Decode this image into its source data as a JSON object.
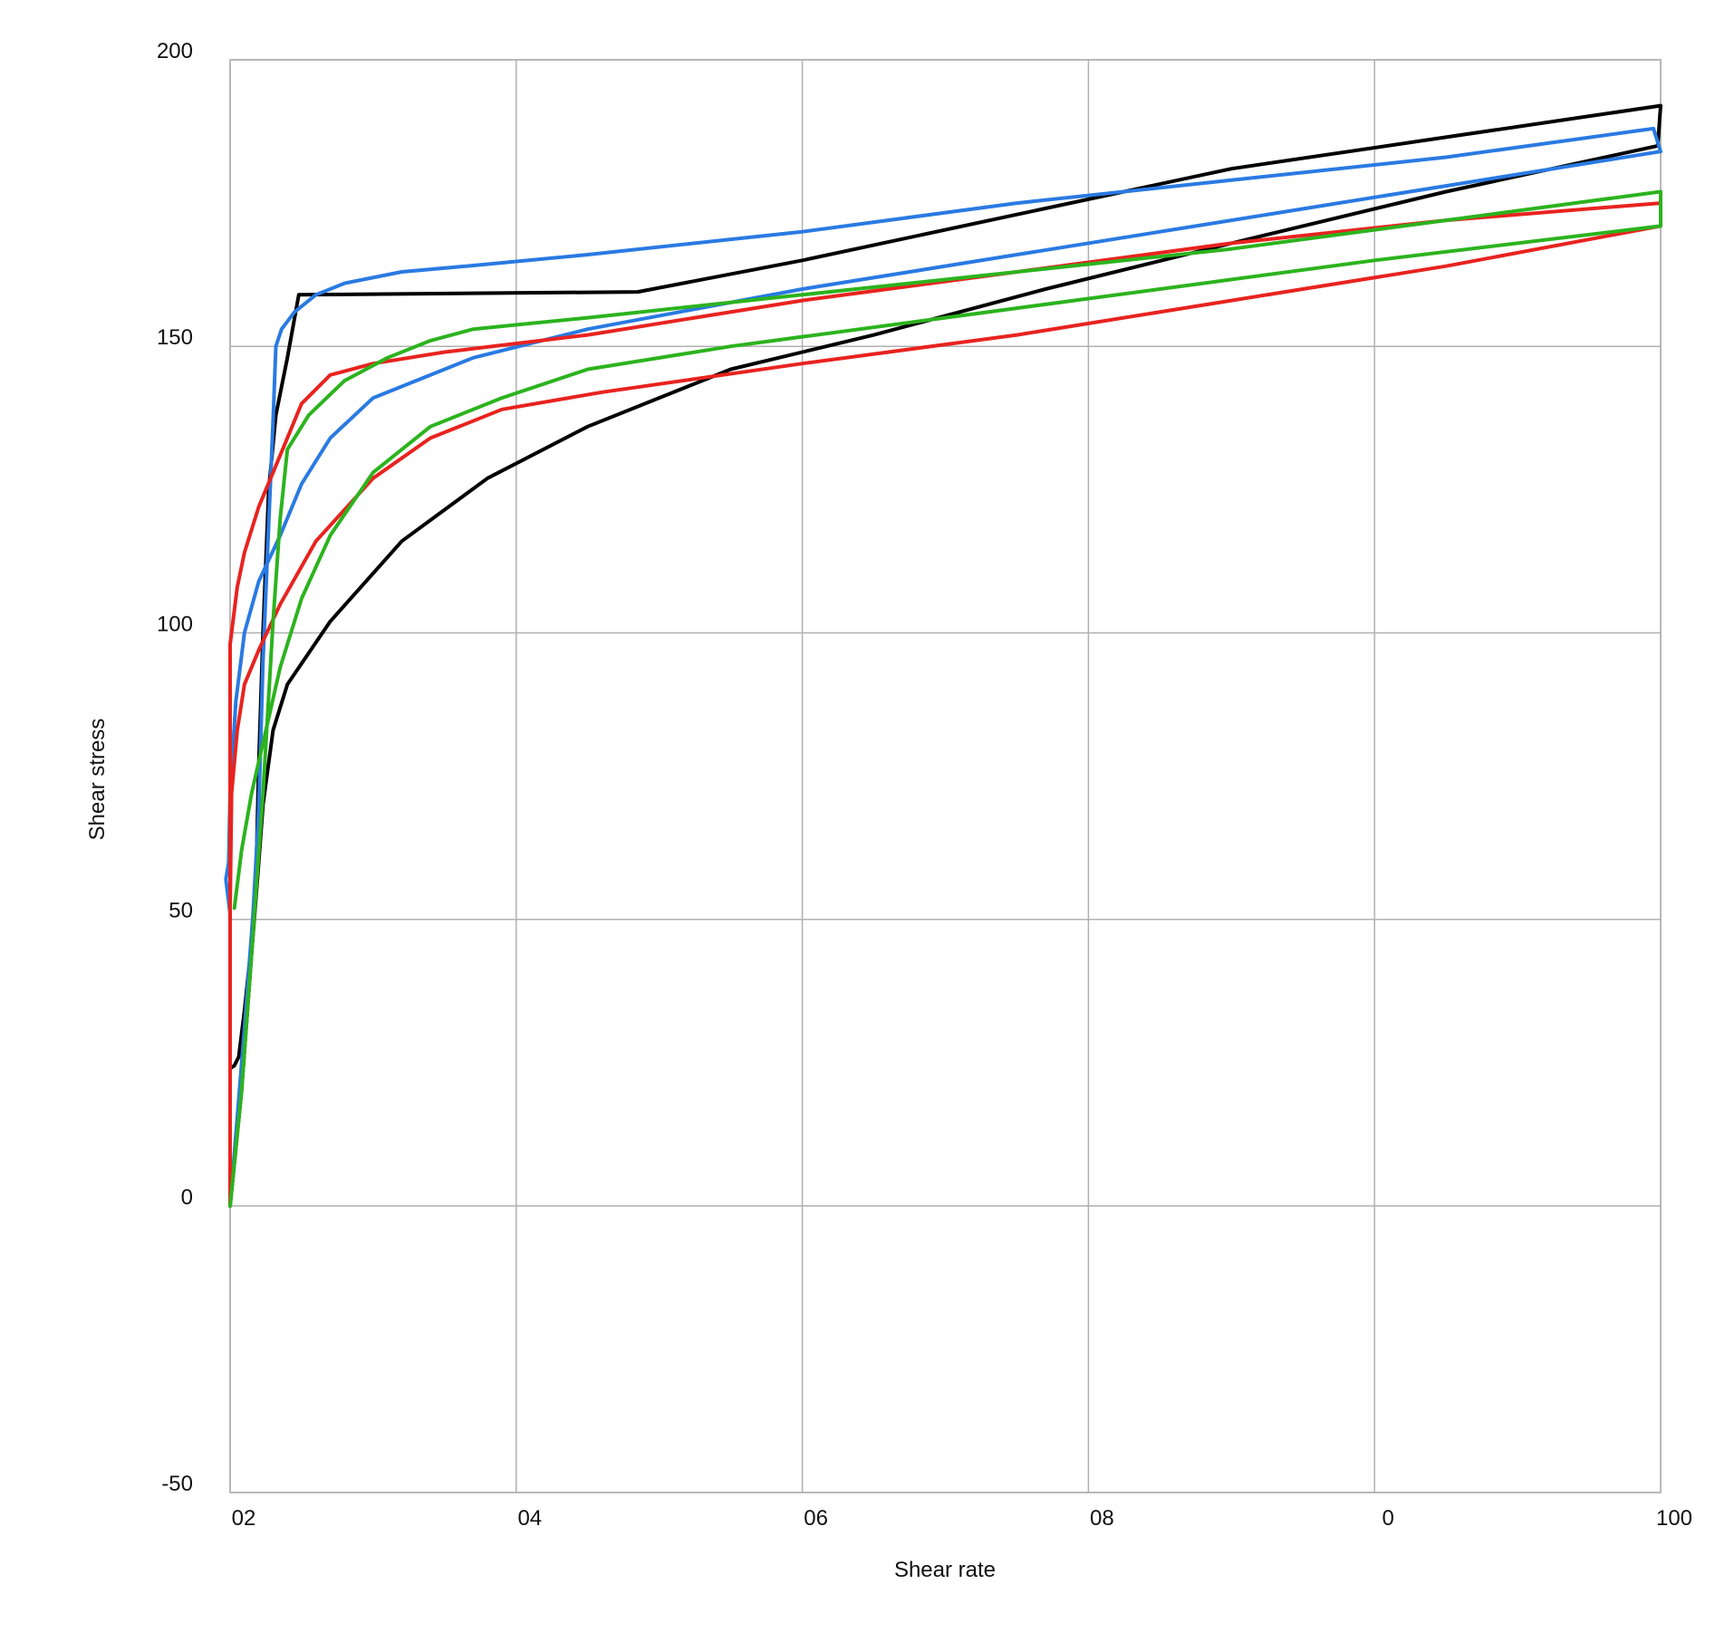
{
  "chart_data": {
    "type": "line",
    "title": "",
    "xlabel": "Shear rate",
    "ylabel": "Shear stress",
    "xlim": [
      0,
      100
    ],
    "ylim": [
      -50,
      200
    ],
    "grid": true,
    "x_tick_labels": [
      "02",
      "04",
      "06",
      "08",
      "0",
      "100"
    ],
    "y_tick_labels": [
      "200",
      "150",
      "100",
      "50",
      "0",
      "-50"
    ],
    "x_ticks": [
      0,
      20,
      40,
      60,
      80,
      100
    ],
    "y_ticks": [
      200,
      150,
      100,
      50,
      0,
      -50
    ],
    "series": [
      {
        "color": "#000000",
        "loop": [
          [
            0,
            24
          ],
          [
            0.3,
            24.5
          ],
          [
            0.6,
            26
          ],
          [
            1,
            34
          ],
          [
            1.5,
            46
          ],
          [
            1.8,
            56
          ],
          [
            2.0,
            77
          ],
          [
            2.3,
            100
          ],
          [
            2.7,
            125
          ],
          [
            3.2,
            138
          ],
          [
            4,
            148
          ],
          [
            4.8,
            159
          ],
          [
            28.5,
            159.5
          ],
          [
            40,
            165
          ],
          [
            55,
            173
          ],
          [
            70,
            181
          ],
          [
            85,
            186.5
          ],
          [
            100,
            192
          ],
          [
            99.8,
            185
          ],
          [
            85,
            177
          ],
          [
            70,
            168
          ],
          [
            57,
            160
          ],
          [
            45,
            152
          ],
          [
            35,
            146
          ],
          [
            25,
            136
          ],
          [
            18,
            127
          ],
          [
            12,
            116
          ],
          [
            7,
            102
          ],
          [
            4,
            91
          ],
          [
            3,
            83
          ],
          [
            2.3,
            70
          ],
          [
            2,
            60
          ],
          [
            1.5,
            44
          ],
          [
            0.8,
            20
          ],
          [
            0,
            0
          ]
        ]
      },
      {
        "color": "#2a7ae2",
        "loop": [
          [
            0,
            51
          ],
          [
            -0.3,
            57
          ],
          [
            -0.1,
            60
          ],
          [
            0,
            72
          ],
          [
            0.4,
            88
          ],
          [
            1,
            100
          ],
          [
            2,
            109
          ],
          [
            3.5,
            117
          ],
          [
            5,
            126
          ],
          [
            7,
            134
          ],
          [
            10,
            141
          ],
          [
            13,
            144
          ],
          [
            17,
            148
          ],
          [
            25,
            153
          ],
          [
            40,
            160
          ],
          [
            55,
            166
          ],
          [
            70,
            172
          ],
          [
            85,
            178
          ],
          [
            100,
            184
          ],
          [
            99.5,
            188
          ],
          [
            85,
            183
          ],
          [
            70,
            179
          ],
          [
            55,
            175
          ],
          [
            40,
            170
          ],
          [
            25,
            166
          ],
          [
            16.5,
            164
          ],
          [
            12,
            163
          ],
          [
            8,
            161
          ],
          [
            6,
            159
          ],
          [
            4.5,
            156
          ],
          [
            3.6,
            153
          ],
          [
            3.2,
            150
          ],
          [
            3.0,
            137
          ],
          [
            2.7,
            119
          ],
          [
            2.3,
            95
          ],
          [
            2,
            69
          ],
          [
            1.6,
            51
          ],
          [
            1,
            31
          ],
          [
            0,
            0
          ]
        ]
      },
      {
        "color": "#e8231f",
        "loop": [
          [
            0,
            0
          ],
          [
            0,
            25
          ],
          [
            0,
            52
          ],
          [
            0.1,
            72
          ],
          [
            0.5,
            83
          ],
          [
            1,
            91
          ],
          [
            2,
            97
          ],
          [
            3.5,
            105
          ],
          [
            6,
            116
          ],
          [
            10,
            127
          ],
          [
            14,
            134
          ],
          [
            19,
            139
          ],
          [
            26,
            142
          ],
          [
            40,
            147
          ],
          [
            55,
            152
          ],
          [
            70,
            158
          ],
          [
            85,
            164
          ],
          [
            100,
            171
          ],
          [
            100,
            175
          ],
          [
            85,
            172
          ],
          [
            70,
            168
          ],
          [
            55,
            163
          ],
          [
            40,
            158
          ],
          [
            25,
            152
          ],
          [
            15,
            149
          ],
          [
            10,
            147
          ],
          [
            7,
            145
          ],
          [
            5,
            140
          ],
          [
            3.5,
            131
          ],
          [
            2,
            122
          ],
          [
            1,
            114
          ],
          [
            0.5,
            108
          ],
          [
            0,
            98
          ],
          [
            0,
            70
          ],
          [
            0,
            50
          ],
          [
            0,
            25
          ],
          [
            0,
            0
          ]
        ]
      },
      {
        "color": "#2cb31e",
        "loop": [
          [
            0.3,
            52
          ],
          [
            0.8,
            62
          ],
          [
            1.5,
            72
          ],
          [
            2.5,
            83
          ],
          [
            3.5,
            94
          ],
          [
            5,
            106
          ],
          [
            7,
            117
          ],
          [
            10,
            128
          ],
          [
            14,
            136
          ],
          [
            19,
            141
          ],
          [
            25,
            146
          ],
          [
            35,
            150
          ],
          [
            50,
            155
          ],
          [
            65,
            160
          ],
          [
            80,
            165
          ],
          [
            100,
            171
          ],
          [
            100,
            177
          ],
          [
            85,
            172
          ],
          [
            70,
            167
          ],
          [
            55,
            163
          ],
          [
            40,
            159
          ],
          [
            25,
            155
          ],
          [
            21,
            154
          ],
          [
            17,
            153
          ],
          [
            14,
            151
          ],
          [
            11,
            148
          ],
          [
            8,
            144
          ],
          [
            5.5,
            138
          ],
          [
            4,
            132
          ],
          [
            3.5,
            120
          ],
          [
            3.0,
            102
          ],
          [
            2.3,
            72
          ],
          [
            1.5,
            44
          ],
          [
            0.8,
            20
          ],
          [
            0,
            0
          ]
        ]
      }
    ]
  }
}
